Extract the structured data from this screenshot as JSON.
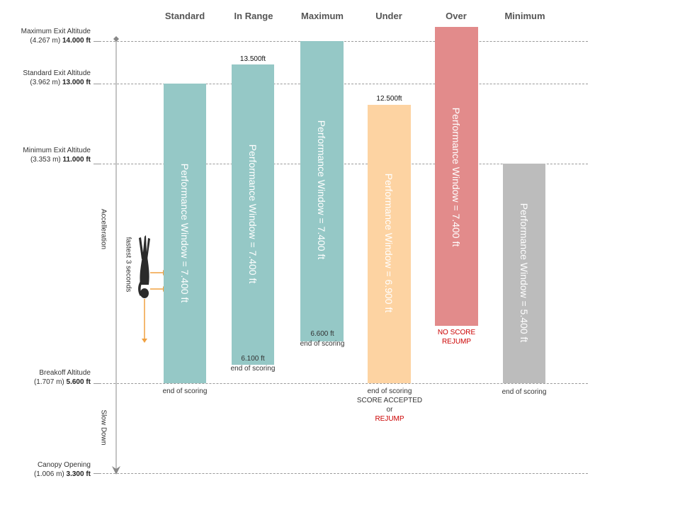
{
  "columns": [
    {
      "name": "Standard",
      "window": "Performance Window = 7.400 ft",
      "top_label": "",
      "bottom_label": "",
      "below": [
        "end of scoring"
      ],
      "color": "#95c8c6"
    },
    {
      "name": "In Range",
      "window": "Performance Window = 7.400 ft",
      "top_label": "13.500ft",
      "bottom_label": "6.100 ft",
      "below": [
        "end of scoring"
      ],
      "color": "#95c8c6"
    },
    {
      "name": "Maximum",
      "window": "Performance Window = 7.400 ft",
      "top_label": "",
      "bottom_label": "6.600 ft",
      "below": [
        "end of scoring"
      ],
      "color": "#95c8c6"
    },
    {
      "name": "Under",
      "window": "Performance Window = 6.900 ft",
      "top_label": "12.500ft",
      "bottom_label": "",
      "below": [
        "end of scoring",
        "SCORE  ACCEPTED",
        "or",
        "REJUMP"
      ],
      "color": "#fdd3a2"
    },
    {
      "name": "Over",
      "window": "Performance Window = 7.400 ft",
      "top_label": "",
      "bottom_label": "",
      "below": [
        "NO SCORE",
        "REJUMP"
      ],
      "color": "#e28b8b"
    },
    {
      "name": "Minimum",
      "window": "Performance Window = 5.400 ft",
      "top_label": "",
      "bottom_label": "",
      "below": [
        "end of scoring"
      ],
      "color": "#bcbcbc"
    }
  ],
  "altitudes": [
    {
      "name": "Maximum Exit Altitude",
      "metric": "(4.267 m)",
      "feet": "14.000 ft"
    },
    {
      "name": "Standard Exit Altitude",
      "metric": "(3.962 m)",
      "feet": "13.000 ft"
    },
    {
      "name": "Minimum  Exit  Altitude",
      "metric": "(3.353 m)",
      "feet": "11.000 ft"
    },
    {
      "name": "Breakoff Altitude",
      "metric": "(1.707 m)",
      "feet": "5.600 ft"
    },
    {
      "name": "Canopy Opening",
      "metric": "(1.006 m)",
      "feet": "3.300 ft"
    }
  ],
  "phases": {
    "acceleration": "Accelleration",
    "slow_down": "Slow Down"
  },
  "fastest_note": "fastest  3  seconds",
  "colors": {
    "teal": "#95c8c6",
    "orange": "#fdd3a2",
    "red": "#e28b8b",
    "gray": "#bcbcbc",
    "arrow": "#f0a040",
    "warning": "#cc0000"
  }
}
